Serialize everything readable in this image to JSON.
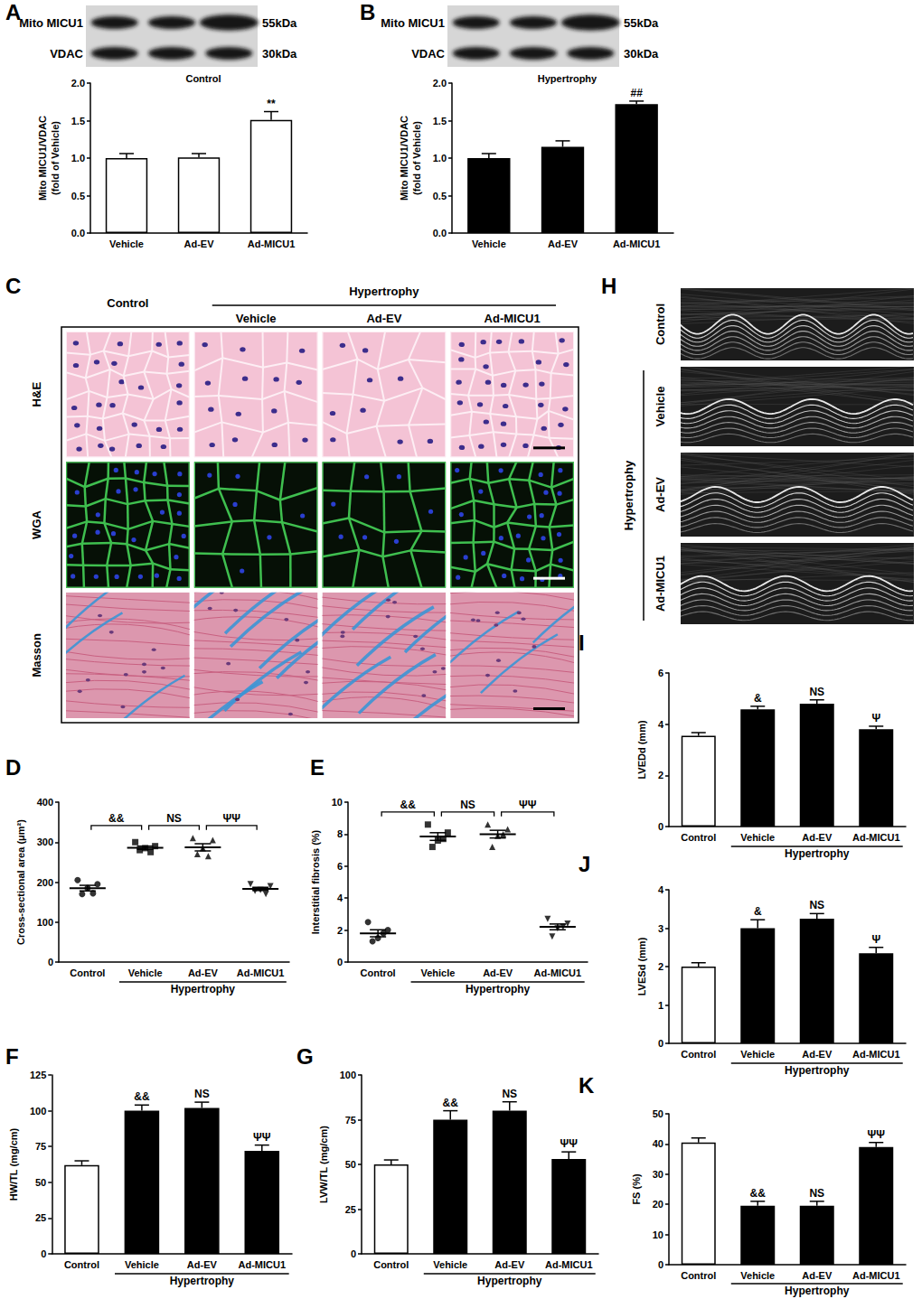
{
  "chart_data": [
    {
      "panel": "A",
      "type": "bar",
      "title": "Control",
      "ylabel": "Mito MICU1/VDAC\n(fold of Vehicle)",
      "categories": [
        "Vehicle",
        "Ad-EV",
        "Ad-MICU1"
      ],
      "values": [
        1.0,
        1.01,
        1.51
      ],
      "errors": [
        0.06,
        0.05,
        0.11
      ],
      "colors": [
        "#ffffff",
        "#ffffff",
        "#ffffff"
      ],
      "annotations": [
        null,
        null,
        "**"
      ],
      "ylim": [
        0,
        2
      ],
      "yticks": [
        {
          "value": 0,
          "label": "0.0"
        },
        0.5,
        {
          "value": 1,
          "label": "1.0"
        },
        1.5,
        {
          "value": 2,
          "label": "2.0"
        }
      ],
      "grid": false,
      "blot": {
        "bands": [
          {
            "label": "Mito MICU1",
            "size": "55kDa"
          },
          {
            "label": "VDAC",
            "size": "30kDa"
          }
        ]
      }
    },
    {
      "panel": "B",
      "type": "bar",
      "title": "Hypertrophy",
      "ylabel": "Mito MICU1/VDAC\n(fold of Vehicle)",
      "categories": [
        "Vehicle",
        "Ad-EV",
        "Ad-MICU1"
      ],
      "values": [
        1.0,
        1.15,
        1.72
      ],
      "errors": [
        0.06,
        0.08,
        0.04
      ],
      "colors": [
        "#000000",
        "#000000",
        "#000000"
      ],
      "annotations": [
        null,
        null,
        "##"
      ],
      "ylim": [
        0,
        2
      ],
      "yticks": [
        {
          "value": 0,
          "label": "0.0"
        },
        0.5,
        {
          "value": 1,
          "label": "1.0"
        },
        1.5,
        {
          "value": 2,
          "label": "2.0"
        }
      ],
      "grid": false,
      "blot": {
        "bands": [
          {
            "label": "Mito MICU1",
            "size": "55kDa"
          },
          {
            "label": "VDAC",
            "size": "30kDa"
          }
        ]
      }
    },
    {
      "panel": "D",
      "type": "scatter",
      "ylabel": "Cross-sectional area (μm²)",
      "categories": [
        "Control",
        "Vehicle",
        "Ad-EV",
        "Ad-MICU1"
      ],
      "points": [
        [
          205,
          195,
          185,
          170,
          172
        ],
        [
          300,
          290,
          285,
          280,
          275
        ],
        [
          310,
          305,
          285,
          270,
          265
        ],
        [
          195,
          190,
          180,
          178,
          170
        ]
      ],
      "means": [
        185,
        286,
        287,
        183
      ],
      "errors": [
        7,
        4,
        9,
        4
      ],
      "markers": [
        "circle",
        "square",
        "triangle",
        "triangle_down"
      ],
      "color": "#000000",
      "comparisons": [
        {
          "from": "Control",
          "to": "Vehicle",
          "label": "&&"
        },
        {
          "from": "Vehicle",
          "to": "Ad-EV",
          "label": "NS"
        },
        {
          "from": "Ad-EV",
          "to": "Ad-MICU1",
          "label": "ΨΨ"
        }
      ],
      "group": {
        "label": "Hypertrophy",
        "categories": [
          "Vehicle",
          "Ad-EV",
          "Ad-MICU1"
        ]
      },
      "ylim": [
        0,
        400
      ],
      "yticks": [
        0,
        100,
        200,
        300,
        400
      ],
      "grid": false
    },
    {
      "panel": "E",
      "type": "scatter",
      "ylabel": "Interstitial fibrosis (%)",
      "categories": [
        "Control",
        "Vehicle",
        "Ad-EV",
        "Ad-MICU1"
      ],
      "points": [
        [
          2.5,
          2.0,
          1.5,
          1.3,
          1.8
        ],
        [
          8.6,
          8.1,
          7.6,
          7.2,
          7.7
        ],
        [
          8.6,
          8.3,
          7.9,
          7.2,
          8.0
        ],
        [
          2.7,
          2.4,
          2.1,
          1.6,
          2.2
        ]
      ],
      "means": [
        1.8,
        7.85,
        8.0,
        2.2
      ],
      "errors": [
        0.22,
        0.24,
        0.24,
        0.18
      ],
      "markers": [
        "circle",
        "square",
        "triangle",
        "triangle_down"
      ],
      "color": "#000000",
      "comparisons": [
        {
          "from": "Control",
          "to": "Vehicle",
          "label": "&&"
        },
        {
          "from": "Vehicle",
          "to": "Ad-EV",
          "label": "NS"
        },
        {
          "from": "Ad-EV",
          "to": "Ad-MICU1",
          "label": "ΨΨ"
        }
      ],
      "group": {
        "label": "Hypertrophy",
        "categories": [
          "Vehicle",
          "Ad-EV",
          "Ad-MICU1"
        ]
      },
      "ylim": [
        0,
        10
      ],
      "yticks": [
        0,
        2,
        4,
        6,
        8,
        10
      ],
      "grid": false
    },
    {
      "panel": "F",
      "type": "bar",
      "ylabel": "HW/TL (mg/cm)",
      "categories": [
        "Control",
        "Vehicle",
        "Ad-EV",
        "Ad-MICU1"
      ],
      "values": [
        62,
        100,
        102,
        72
      ],
      "errors": [
        3,
        4,
        4,
        4
      ],
      "colors": [
        "#ffffff",
        "#000000",
        "#000000",
        "#000000"
      ],
      "annotations": [
        null,
        "&&",
        "NS",
        "ΨΨ"
      ],
      "group": {
        "label": "Hypertrophy",
        "categories": [
          "Vehicle",
          "Ad-EV",
          "Ad-MICU1"
        ]
      },
      "ylim": [
        0,
        125
      ],
      "yticks": [
        0,
        25,
        50,
        75,
        100,
        125
      ],
      "grid": false
    },
    {
      "panel": "G",
      "type": "bar",
      "ylabel": "LVW/TL (mg/cm)",
      "categories": [
        "Control",
        "Vehicle",
        "Ad-EV",
        "Ad-MICU1"
      ],
      "values": [
        50,
        75,
        80,
        53
      ],
      "errors": [
        2.5,
        5,
        5,
        4
      ],
      "colors": [
        "#ffffff",
        "#000000",
        "#000000",
        "#000000"
      ],
      "annotations": [
        null,
        "&&",
        "NS",
        "ΨΨ"
      ],
      "group": {
        "label": "Hypertrophy",
        "categories": [
          "Vehicle",
          "Ad-EV",
          "Ad-MICU1"
        ]
      },
      "ylim": [
        0,
        100
      ],
      "yticks": [
        0,
        25,
        50,
        75,
        100
      ],
      "grid": false
    },
    {
      "panel": "I",
      "type": "bar",
      "ylabel": "LVEDd (mm)",
      "categories": [
        "Control",
        "Vehicle",
        "Ad-EV",
        "Ad-MICU1"
      ],
      "values": [
        3.55,
        4.58,
        4.8,
        3.8
      ],
      "errors": [
        0.12,
        0.12,
        0.15,
        0.12
      ],
      "colors": [
        "#ffffff",
        "#000000",
        "#000000",
        "#000000"
      ],
      "annotations": [
        null,
        "&",
        "NS",
        "Ψ"
      ],
      "group": {
        "label": "Hypertrophy",
        "categories": [
          "Vehicle",
          "Ad-EV",
          "Ad-MICU1"
        ]
      },
      "ylim": [
        0,
        6
      ],
      "yticks": [
        0,
        2,
        4,
        6
      ],
      "grid": false
    },
    {
      "panel": "J",
      "type": "bar",
      "ylabel": "LVESd (mm)",
      "categories": [
        "Control",
        "Vehicle",
        "Ad-EV",
        "Ad-MICU1"
      ],
      "values": [
        2.0,
        3.0,
        3.25,
        2.35
      ],
      "errors": [
        0.1,
        0.22,
        0.13,
        0.15
      ],
      "colors": [
        "#ffffff",
        "#000000",
        "#000000",
        "#000000"
      ],
      "annotations": [
        null,
        "&",
        "NS",
        "Ψ"
      ],
      "group": {
        "label": "Hypertrophy",
        "categories": [
          "Vehicle",
          "Ad-EV",
          "Ad-MICU1"
        ]
      },
      "ylim": [
        0,
        4
      ],
      "yticks": [
        0,
        1,
        2,
        3,
        4
      ],
      "grid": false
    },
    {
      "panel": "K",
      "type": "bar",
      "ylabel": "FS (%)",
      "categories": [
        "Control",
        "Vehicle",
        "Ad-EV",
        "Ad-MICU1"
      ],
      "values": [
        40.5,
        19.5,
        19.5,
        39
      ],
      "errors": [
        1.5,
        1.5,
        1.5,
        1.5
      ],
      "colors": [
        "#ffffff",
        "#000000",
        "#000000",
        "#000000"
      ],
      "annotations": [
        null,
        "&&",
        "NS",
        "ΨΨ"
      ],
      "group": {
        "label": "Hypertrophy",
        "categories": [
          "Vehicle",
          "Ad-EV",
          "Ad-MICU1"
        ]
      },
      "ylim": [
        0,
        50
      ],
      "yticks": [
        0,
        10,
        20,
        30,
        40,
        50
      ],
      "grid": false
    }
  ],
  "histology": {
    "panel": "C",
    "columns": [
      "Control",
      "Vehicle",
      "Ad-EV",
      "Ad-MICU1"
    ],
    "group": {
      "label": "Hypertrophy",
      "columns": [
        "Vehicle",
        "Ad-EV",
        "Ad-MICU1"
      ]
    },
    "rows": [
      "H&E",
      "WGA",
      "Masson"
    ]
  },
  "echo": {
    "panel": "H",
    "rows": [
      "Control",
      "Vehicle",
      "Ad-EV",
      "Ad-MICU1"
    ],
    "group": {
      "label": "Hypertrophy",
      "rows": [
        "Vehicle",
        "Ad-EV",
        "Ad-MICU1"
      ]
    }
  }
}
